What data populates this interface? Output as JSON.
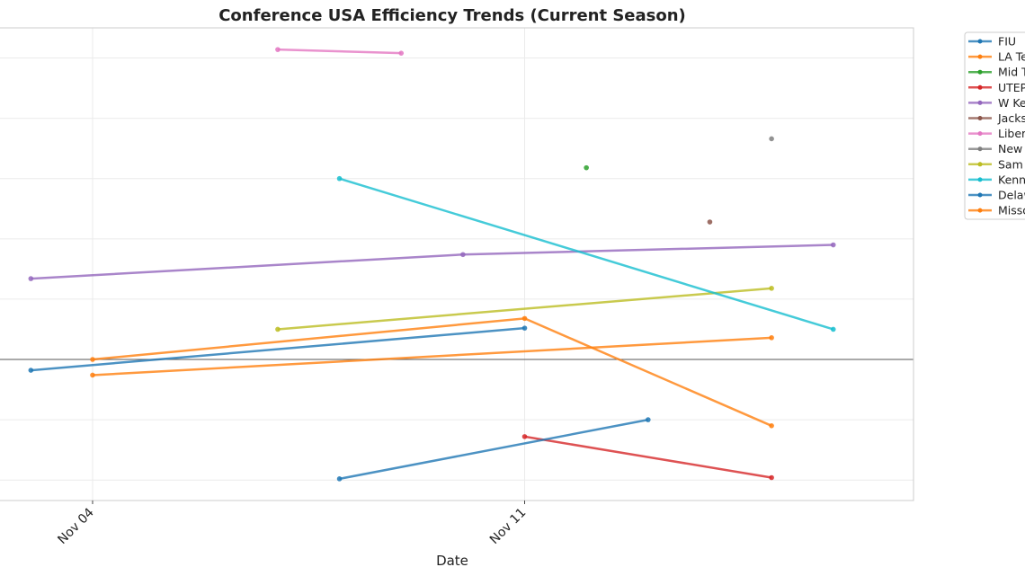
{
  "chart_data": {
    "type": "line",
    "title": "Conference USA Efficiency Trends (Current Season)",
    "xlabel": "Date",
    "ylabel": "",
    "x_ticks": [
      "Nov 04",
      "Nov 11"
    ],
    "x_tick_days": [
      4,
      11
    ],
    "xlim_days": [
      2.5,
      17.3
    ],
    "ylim": [
      -11.7,
      27.5
    ],
    "y_grid_values": [
      -10,
      -5,
      0,
      5,
      10,
      15,
      20,
      25
    ],
    "zero_line": true,
    "grid": true,
    "legend_placement": "outside-right",
    "series": [
      {
        "name": "FIU",
        "color": "#1f77b4",
        "points": [
          {
            "x": "Nov 03",
            "y": -0.9
          },
          {
            "x": "Nov 11",
            "y": 2.6
          }
        ]
      },
      {
        "name": "LA Te",
        "color": "#ff7f0e",
        "points": [
          {
            "x": "Nov 04",
            "y": 0.0
          },
          {
            "x": "Nov 11",
            "y": 3.4
          },
          {
            "x": "Nov 15",
            "y": -5.5
          }
        ]
      },
      {
        "name": "Mid T",
        "color": "#2ca02c",
        "points": [
          {
            "x": "Nov 12",
            "y": 15.9
          }
        ]
      },
      {
        "name": "UTEP",
        "color": "#d62728",
        "points": [
          {
            "x": "Nov 11",
            "y": -6.4
          },
          {
            "x": "Nov 15",
            "y": -9.8
          }
        ]
      },
      {
        "name": "W Ke",
        "color": "#9467bd",
        "points": [
          {
            "x": "Nov 03",
            "y": 6.7
          },
          {
            "x": "Nov 10",
            "y": 8.7
          },
          {
            "x": "Nov 16",
            "y": 9.5
          }
        ]
      },
      {
        "name": "Jacks",
        "color": "#8c564b",
        "points": [
          {
            "x": "Nov 14",
            "y": 11.4
          }
        ]
      },
      {
        "name": "Liber",
        "color": "#e377c2",
        "points": [
          {
            "x": "Nov 07",
            "y": 25.7
          },
          {
            "x": "Nov 09",
            "y": 25.4
          }
        ]
      },
      {
        "name": "New",
        "color": "#7f7f7f",
        "points": [
          {
            "x": "Nov 15",
            "y": 18.3
          }
        ]
      },
      {
        "name": "Sam",
        "color": "#bcbd22",
        "points": [
          {
            "x": "Nov 07",
            "y": 2.5
          },
          {
            "x": "Nov 15",
            "y": 5.9
          }
        ]
      },
      {
        "name": "Kenn",
        "color": "#17becf",
        "points": [
          {
            "x": "Nov 08",
            "y": 15.0
          },
          {
            "x": "Nov 16",
            "y": 2.5
          }
        ]
      },
      {
        "name": "Delaw",
        "color": "#1f77b4",
        "points": [
          {
            "x": "Nov 08",
            "y": -9.9
          },
          {
            "x": "Nov 13",
            "y": -5.0
          }
        ]
      },
      {
        "name": "Misso",
        "color": "#ff7f0e",
        "points": [
          {
            "x": "Nov 04",
            "y": -1.3
          },
          {
            "x": "Nov 15",
            "y": 1.8
          }
        ]
      }
    ]
  }
}
